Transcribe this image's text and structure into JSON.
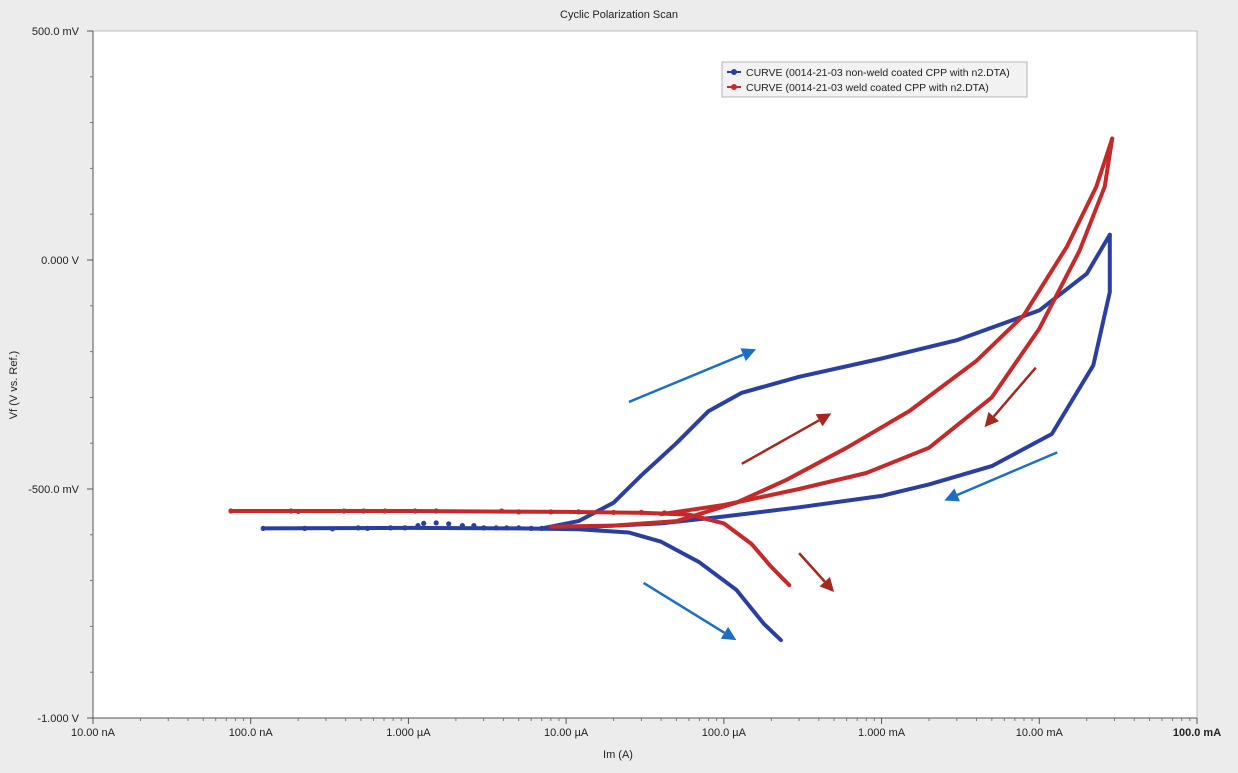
{
  "chart_data": {
    "type": "line",
    "title": "Cyclic Polarization Scan",
    "xlabel": "Im (A)",
    "ylabel": "Vf (V vs. Ref.)",
    "x_scale": "log",
    "xlim": [
      1e-08,
      0.1
    ],
    "ylim": [
      -1.0,
      0.5
    ],
    "x_ticks": [
      {
        "value": 1e-08,
        "label": "10.00 nA"
      },
      {
        "value": 1e-07,
        "label": "100.0 nA"
      },
      {
        "value": 1e-06,
        "label": "1.000 µA"
      },
      {
        "value": 1e-05,
        "label": "10.00 µA"
      },
      {
        "value": 0.0001,
        "label": "100.0 µA"
      },
      {
        "value": 0.001,
        "label": "1.000 mA"
      },
      {
        "value": 0.01,
        "label": "10.00 mA"
      },
      {
        "value": 0.1,
        "label": "100.0 mA"
      }
    ],
    "y_ticks": [
      {
        "value": 0.5,
        "label": "500.0 mV"
      },
      {
        "value": 0.0,
        "label": "0.000 V"
      },
      {
        "value": -0.5,
        "label": "-500.0 mV"
      },
      {
        "value": -1.0,
        "label": "-1.000 V"
      }
    ],
    "grid": false,
    "legend_position": "top-right",
    "series": [
      {
        "name": "CURVE (0014-21-03 non-weld coated CPP with n2.DTA)",
        "color": "#2b3fa0",
        "marker_points": [
          [
            1.2e-07,
            -0.586
          ],
          [
            2.2e-07,
            -0.586
          ],
          [
            3.3e-07,
            -0.587
          ],
          [
            4.8e-07,
            -0.585
          ],
          [
            5.5e-07,
            -0.586
          ],
          [
            7.7e-07,
            -0.585
          ],
          [
            9.5e-07,
            -0.585
          ],
          [
            1.15e-06,
            -0.58
          ],
          [
            1.25e-06,
            -0.575
          ],
          [
            1.5e-06,
            -0.574
          ],
          [
            1.8e-06,
            -0.576
          ],
          [
            2.2e-06,
            -0.58
          ],
          [
            2.6e-06,
            -0.58
          ],
          [
            3e-06,
            -0.585
          ],
          [
            3.6e-06,
            -0.585
          ],
          [
            4.2e-06,
            -0.585
          ],
          [
            5e-06,
            -0.585
          ],
          [
            6e-06,
            -0.586
          ],
          [
            7e-06,
            -0.586
          ]
        ],
        "lines": [
          [
            [
              1.2e-07,
              -0.586
            ],
            [
              1e-06,
              -0.585
            ],
            [
              5e-06,
              -0.586
            ],
            [
              1.2e-05,
              -0.588
            ],
            [
              2.5e-05,
              -0.595
            ],
            [
              4e-05,
              -0.615
            ],
            [
              7e-05,
              -0.66
            ],
            [
              0.00012,
              -0.72
            ],
            [
              0.00018,
              -0.795
            ],
            [
              0.00023,
              -0.83
            ]
          ],
          [
            [
              7e-06,
              -0.586
            ],
            [
              1.2e-05,
              -0.57
            ],
            [
              2e-05,
              -0.53
            ],
            [
              3e-05,
              -0.47
            ],
            [
              5e-05,
              -0.4
            ],
            [
              8e-05,
              -0.33
            ],
            [
              0.00013,
              -0.29
            ],
            [
              0.0003,
              -0.255
            ],
            [
              0.001,
              -0.215
            ],
            [
              0.003,
              -0.175
            ],
            [
              0.01,
              -0.11
            ],
            [
              0.02,
              -0.03
            ],
            [
              0.028,
              0.055
            ]
          ],
          [
            [
              0.028,
              0.055
            ],
            [
              0.028,
              -0.07
            ],
            [
              0.022,
              -0.23
            ],
            [
              0.012,
              -0.38
            ],
            [
              0.005,
              -0.45
            ],
            [
              0.002,
              -0.49
            ],
            [
              0.001,
              -0.515
            ],
            [
              0.0003,
              -0.54
            ],
            [
              0.0001,
              -0.56
            ],
            [
              4e-05,
              -0.575
            ],
            [
              2e-05,
              -0.58
            ],
            [
              1e-05,
              -0.585
            ]
          ]
        ]
      },
      {
        "name": "CURVE (0014-21-03 weld coated CPP with n2.DTA)",
        "color": "#c42a2a",
        "marker_points": [
          [
            7.5e-08,
            -0.548
          ],
          [
            1.8e-07,
            -0.548
          ],
          [
            2e-07,
            -0.549
          ],
          [
            3.9e-07,
            -0.548
          ],
          [
            5.2e-07,
            -0.548
          ],
          [
            7.1e-07,
            -0.548
          ],
          [
            1.1e-06,
            -0.548
          ],
          [
            1.5e-06,
            -0.548
          ],
          [
            3.9e-06,
            -0.548
          ],
          [
            5e-06,
            -0.55
          ],
          [
            8e-06,
            -0.55
          ],
          [
            1.2e-05,
            -0.55
          ],
          [
            2e-05,
            -0.551
          ],
          [
            3e-05,
            -0.551
          ],
          [
            4.2e-05,
            -0.552
          ]
        ],
        "lines": [
          [
            [
              7.5e-08,
              -0.548
            ],
            [
              1e-06,
              -0.548
            ],
            [
              1e-05,
              -0.55
            ],
            [
              3e-05,
              -0.552
            ],
            [
              6e-05,
              -0.556
            ],
            [
              0.0001,
              -0.575
            ],
            [
              0.00015,
              -0.62
            ],
            [
              0.0002,
              -0.67
            ],
            [
              0.00026,
              -0.71
            ]
          ],
          [
            [
              8e-06,
              -0.582
            ],
            [
              2e-05,
              -0.58
            ],
            [
              5e-05,
              -0.57
            ],
            [
              0.00012,
              -0.53
            ],
            [
              0.00025,
              -0.48
            ],
            [
              0.0006,
              -0.41
            ],
            [
              0.0015,
              -0.33
            ],
            [
              0.004,
              -0.22
            ],
            [
              0.008,
              -0.12
            ],
            [
              0.015,
              0.03
            ],
            [
              0.023,
              0.16
            ],
            [
              0.029,
              0.265
            ]
          ],
          [
            [
              0.029,
              0.265
            ],
            [
              0.026,
              0.16
            ],
            [
              0.018,
              0.02
            ],
            [
              0.01,
              -0.15
            ],
            [
              0.005,
              -0.3
            ],
            [
              0.002,
              -0.41
            ],
            [
              0.0008,
              -0.465
            ],
            [
              0.0003,
              -0.5
            ],
            [
              0.0001,
              -0.535
            ],
            [
              4e-05,
              -0.555
            ]
          ]
        ]
      }
    ],
    "annotations": [
      {
        "type": "arrow",
        "color": "#1e6fc2",
        "from": [
          2.5e-05,
          -0.31
        ],
        "to": [
          0.00016,
          -0.195
        ]
      },
      {
        "type": "arrow",
        "color": "#1e6fc2",
        "from": [
          0.013,
          -0.42
        ],
        "to": [
          0.0025,
          -0.525
        ]
      },
      {
        "type": "arrow",
        "color": "#1e6fc2",
        "from": [
          3.1e-05,
          -0.705
        ],
        "to": [
          0.00012,
          -0.83
        ]
      },
      {
        "type": "arrow",
        "color": "#a3281e",
        "from": [
          0.00013,
          -0.445
        ],
        "to": [
          0.00048,
          -0.335
        ]
      },
      {
        "type": "arrow",
        "color": "#a3281e",
        "from": [
          0.0095,
          -0.235
        ],
        "to": [
          0.0045,
          -0.365
        ]
      },
      {
        "type": "arrow",
        "color": "#a3281e",
        "from": [
          0.0003,
          -0.64
        ],
        "to": [
          0.0005,
          -0.725
        ]
      }
    ]
  }
}
